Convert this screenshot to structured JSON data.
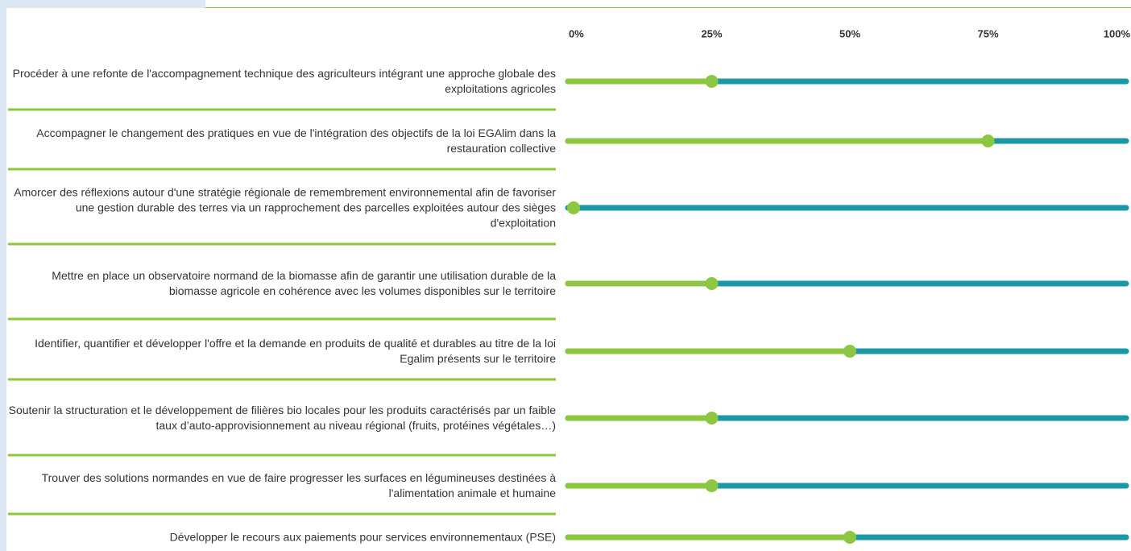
{
  "chart_data": {
    "type": "progress",
    "categories": [
      "Procéder à une refonte de l'accompagnement technique des agriculteurs intégrant une approche globale des exploitations agricoles",
      "Accompagner le changement des pratiques en vue de l'intégration des objectifs de la loi EGAlim dans la restauration collective",
      "Amorcer des réflexions autour d'une stratégie régionale de remembrement environnemental afin de favoriser une gestion durable des terres via un rapprochement des parcelles exploitées autour des sièges d'exploitation",
      "Mettre en place un observatoire normand de la biomasse afin de garantir une utilisation durable de la biomasse agricole en cohérence avec les volumes disponibles sur le territoire",
      "Identifier, quantifier et développer l'offre et la demande en produits de qualité et durables au titre de la loi Egalim présents sur le territoire",
      "Soutenir la structuration et le développement de filières bio locales pour les produits caractérisés par un faible taux d’auto-approvisionnement au niveau régional (fruits, protéines végétales…)",
      "Trouver des solutions normandes en vue de faire progresser les surfaces en légumineuses destinées à l'alimentation animale et humaine",
      "Développer le recours aux paiements pour services environnementaux (PSE)"
    ],
    "values": [
      25,
      75,
      0,
      25,
      50,
      25,
      25,
      50
    ],
    "color": "#8dc63f",
    "track_color": "#1a98a6",
    "xlim": [
      0,
      100
    ],
    "xticks": [
      {
        "value": 0,
        "label": "0%"
      },
      {
        "value": 25,
        "label": "25%"
      },
      {
        "value": 50,
        "label": "50%"
      },
      {
        "value": 75,
        "label": "75%"
      },
      {
        "value": 100,
        "label": "100%"
      }
    ]
  }
}
